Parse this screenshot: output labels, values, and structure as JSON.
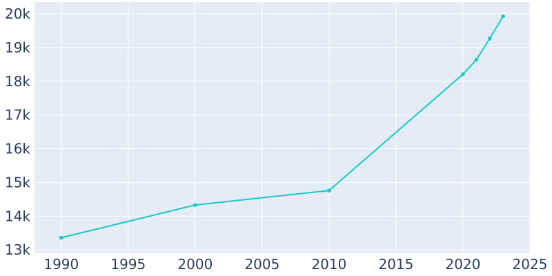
{
  "chart_data": {
    "type": "line",
    "title": "",
    "xlabel": "",
    "ylabel": "",
    "xlim": [
      1988,
      2025
    ],
    "ylim": [
      12900,
      20350
    ],
    "grid": true,
    "x_ticks": [
      1990,
      1995,
      2000,
      2005,
      2010,
      2015,
      2020,
      2025
    ],
    "x_tick_labels": [
      "1990",
      "1995",
      "2000",
      "2005",
      "2010",
      "2015",
      "2020",
      "2025"
    ],
    "y_ticks": [
      13000,
      14000,
      15000,
      16000,
      17000,
      18000,
      19000,
      20000
    ],
    "y_tick_labels": [
      "13k",
      "14k",
      "15k",
      "16k",
      "17k",
      "18k",
      "19k",
      "20k"
    ],
    "series": [
      {
        "x": [
          1990,
          2000,
          2010,
          2020,
          2021,
          2022,
          2023
        ],
        "y": [
          13360,
          14330,
          14760,
          18210,
          18640,
          19270,
          19930
        ]
      }
    ],
    "colors": {
      "line": "#17c9c9",
      "plot_bg": "#e5ecf6",
      "grid": "#ffffff",
      "text": "#2a3f5f"
    }
  }
}
